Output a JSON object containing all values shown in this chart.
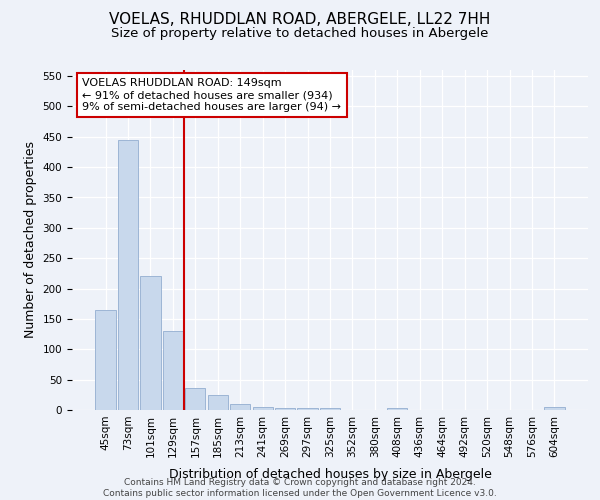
{
  "title1": "VOELAS, RHUDDLAN ROAD, ABERGELE, LL22 7HH",
  "title2": "Size of property relative to detached houses in Abergele",
  "xlabel": "Distribution of detached houses by size in Abergele",
  "ylabel": "Number of detached properties",
  "categories": [
    "45sqm",
    "73sqm",
    "101sqm",
    "129sqm",
    "157sqm",
    "185sqm",
    "213sqm",
    "241sqm",
    "269sqm",
    "297sqm",
    "325sqm",
    "352sqm",
    "380sqm",
    "408sqm",
    "436sqm",
    "464sqm",
    "492sqm",
    "520sqm",
    "548sqm",
    "576sqm",
    "604sqm"
  ],
  "values": [
    165,
    445,
    220,
    130,
    36,
    25,
    10,
    5,
    4,
    3,
    4,
    0,
    0,
    4,
    0,
    0,
    0,
    0,
    0,
    0,
    5
  ],
  "bar_color": "#c8d8ec",
  "bar_edge_color": "#9db5d5",
  "highlight_label": "VOELAS RHUDDLAN ROAD: 149sqm",
  "annotation_line1": "← 91% of detached houses are smaller (934)",
  "annotation_line2": "9% of semi-detached houses are larger (94) →",
  "red_line_color": "#cc0000",
  "annotation_box_color": "#ffffff",
  "annotation_box_edge": "#cc0000",
  "background_color": "#eef2f9",
  "ylim": [
    0,
    560
  ],
  "yticks": [
    0,
    50,
    100,
    150,
    200,
    250,
    300,
    350,
    400,
    450,
    500,
    550
  ],
  "footer": "Contains HM Land Registry data © Crown copyright and database right 2024.\nContains public sector information licensed under the Open Government Licence v3.0.",
  "title1_fontsize": 11,
  "title2_fontsize": 9.5,
  "tick_fontsize": 7.5,
  "ylabel_fontsize": 9,
  "xlabel_fontsize": 9,
  "red_line_x": 3.5
}
